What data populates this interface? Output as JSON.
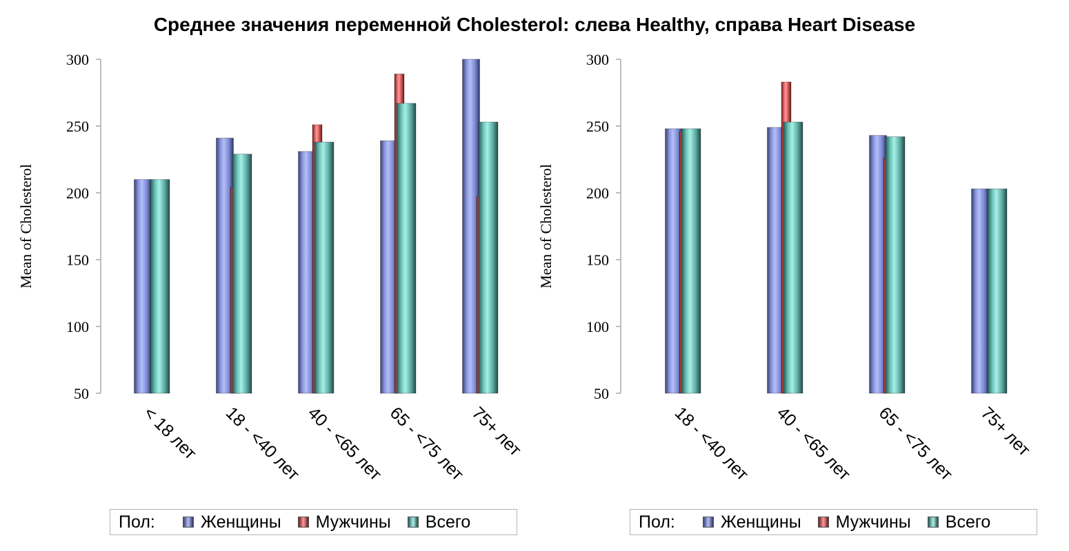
{
  "title": "Среднее значения переменной Cholesterol: слева Healthy, справа Heart Disease",
  "colors": {
    "women": "#9aa6ef",
    "men": "#f07c7c",
    "total": "#7fd6cc",
    "axis": "#a8a8a8"
  },
  "chart_data": [
    {
      "type": "bar",
      "ylabel": "Mean of Cholesterol",
      "ylim": [
        50,
        300
      ],
      "yticks": [
        "50",
        "100",
        "150",
        "200",
        "250",
        "300"
      ],
      "categories": [
        "< 18 лет",
        "18 - <40 лет",
        "40 - <65 лет",
        "65 - <75 лет",
        "75+ лет"
      ],
      "series": [
        {
          "name": "Женщины",
          "key": "women",
          "values": [
            210,
            241,
            231,
            239,
            300
          ]
        },
        {
          "name": "Мужчины",
          "key": "men",
          "values": [
            null,
            204,
            251,
            289,
            197
          ]
        },
        {
          "name": "Всего",
          "key": "total",
          "values": [
            210,
            229,
            238,
            267,
            253
          ]
        }
      ],
      "legend": {
        "title": "Пол:",
        "items": [
          "Женщины",
          "Мужчины",
          "Всего"
        ]
      },
      "grid": false
    },
    {
      "type": "bar",
      "ylabel": "Mean of Cholesterol",
      "ylim": [
        50,
        300
      ],
      "yticks": [
        "50",
        "100",
        "150",
        "200",
        "250",
        "300"
      ],
      "categories": [
        "18 - <40 лет",
        "40 - <65 лет",
        "65 - <75 лет",
        "75+ лет"
      ],
      "series": [
        {
          "name": "Женщины",
          "key": "women",
          "values": [
            248,
            249,
            243,
            203
          ]
        },
        {
          "name": "Мужчины",
          "key": "men",
          "values": [
            246,
            283,
            226,
            null
          ]
        },
        {
          "name": "Всего",
          "key": "total",
          "values": [
            248,
            253,
            242,
            203
          ]
        }
      ],
      "legend": {
        "title": "Пол:",
        "items": [
          "Женщины",
          "Мужчины",
          "Всего"
        ]
      },
      "grid": false
    }
  ]
}
